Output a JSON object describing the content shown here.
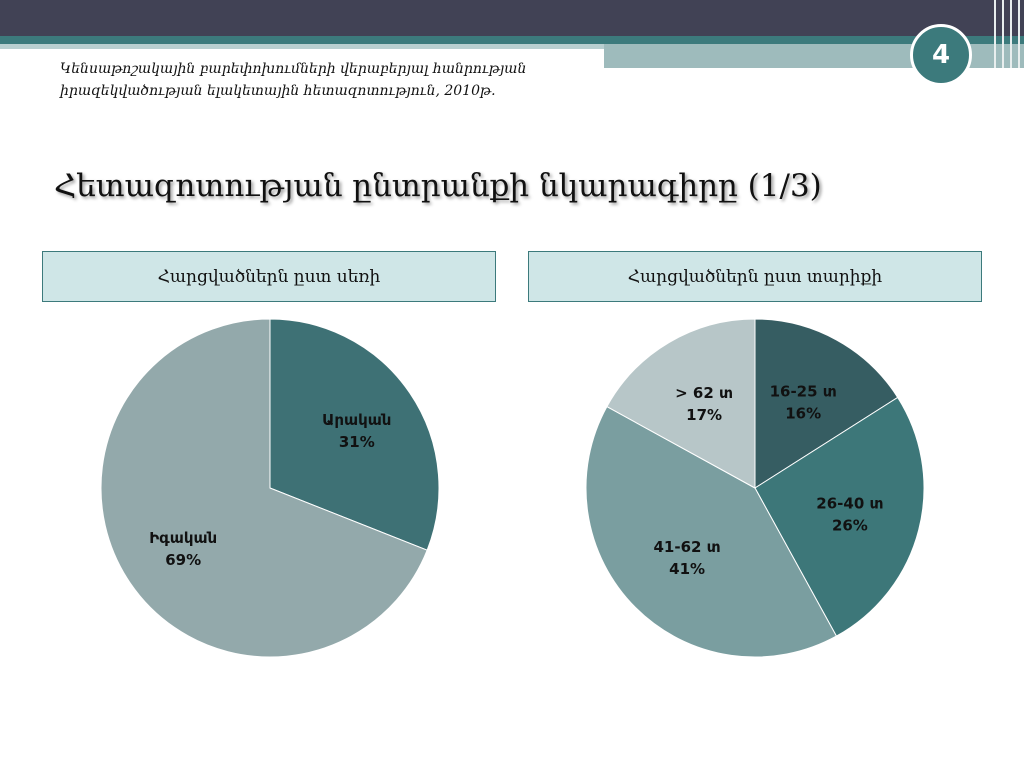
{
  "header": {
    "page_number": "4",
    "subtitle": "Կենսաթոշակային բարեփոխումների վերաբերյալ հանրության իրազեկվածության ելակետային հետազոտություն, 2010թ."
  },
  "slide_title": "Հետազոտության ընտրանքի նկարագիրը (1/3)",
  "colors": {
    "topbar": "#414255",
    "accent": "#3c7a7c",
    "box_fill": "#cfe6e7"
  },
  "chart_data": [
    {
      "type": "pie",
      "title": "Հարցվածներն ըստ սեռի",
      "slices": [
        {
          "label": "Արական",
          "value": 31,
          "value_label": "31%",
          "color": "#3e7175"
        },
        {
          "label": "Իգական",
          "value": 69,
          "value_label": "69%",
          "color": "#93a9ab"
        }
      ]
    },
    {
      "type": "pie",
      "title": "Հարցվածներն ըստ տարիքի",
      "slices": [
        {
          "label": "16-25 տ",
          "value": 16,
          "value_label": "16%",
          "color": "#365d62"
        },
        {
          "label": "26-40 տ",
          "value": 26,
          "value_label": "26%",
          "color": "#3d7779"
        },
        {
          "label": "41-62 տ",
          "value": 41,
          "value_label": "41%",
          "color": "#7a9ea0"
        },
        {
          "label": "> 62 տ",
          "value": 17,
          "value_label": "17%",
          "color": "#b7c6c8"
        }
      ]
    }
  ]
}
